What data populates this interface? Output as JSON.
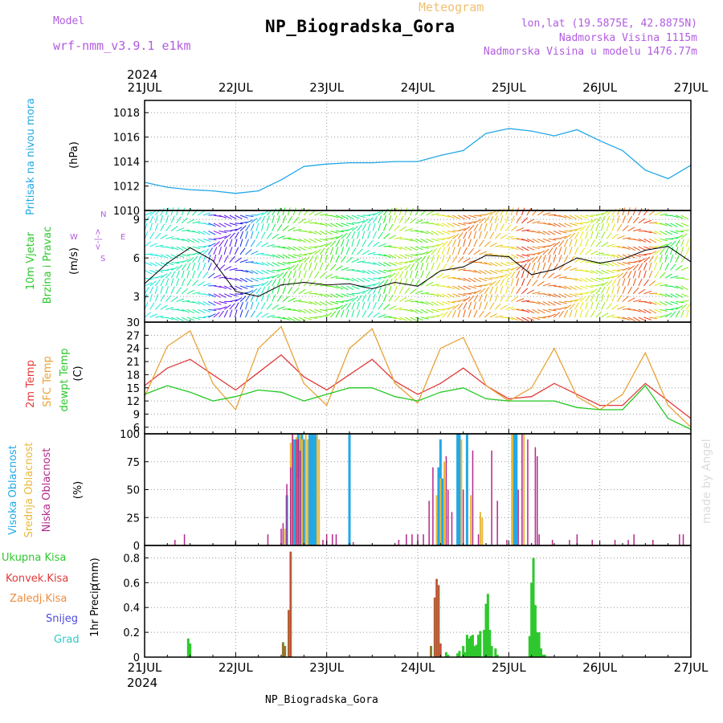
{
  "header": {
    "model_label": "Model",
    "model_name": "wrf-nmm_v3.9.1 e1km",
    "station_title": "NP_Biogradska_Gora",
    "meteogram_label": "Meteogram",
    "lonlat": "lon,lat (19.5875E, 42.8875N)",
    "elevation": "Nadmorska Visina 1115m",
    "model_elevation": "Nadmorska Visina u modelu 1476.77m",
    "year": "2024",
    "footer_station": "NP_Biogradska_Gora",
    "credit": "made by Angel"
  },
  "time_axis": {
    "labels": [
      "21JUL",
      "22JUL",
      "23JUL",
      "24JUL",
      "25JUL",
      "26JUL",
      "27JUL"
    ],
    "year": "2024"
  },
  "colors": {
    "pressure": "#22a8e6",
    "temp2m": "#e23a3a",
    "sfc_temp": "#e8a33a",
    "dewpoint": "#22c822",
    "high_cloud": "#22a8e6",
    "mid_cloud": "#e8b83a",
    "low_cloud": "#b4288c",
    "precip_total": "#2ec82e",
    "precip_conv": "#e23a3a",
    "precip_frozen": "#f08c3c",
    "snow": "#4b4bdc",
    "graupel": "#32c8c8"
  },
  "chart_data": [
    {
      "type": "line",
      "panel": "pressure",
      "ylabel": "Pritisak na nivou mora",
      "yunit": "(hPa)",
      "ylim": [
        1010,
        1019
      ],
      "yticks": [
        1010,
        1012,
        1014,
        1016,
        1018
      ],
      "x_hours": [
        0,
        6,
        12,
        18,
        24,
        30,
        36,
        42,
        48,
        54,
        60,
        66,
        72,
        78,
        84,
        90,
        96,
        102,
        108,
        114,
        120,
        126,
        132,
        138,
        144
      ],
      "series": [
        {
          "values": [
            1012.3,
            1011.9,
            1011.7,
            1011.6,
            1011.4,
            1011.6,
            1012.5,
            1013.6,
            1013.8,
            1013.9,
            1013.9,
            1014.0,
            1014.0,
            1014.5,
            1014.9,
            1016.3,
            1016.7,
            1016.5,
            1016.1,
            1016.6,
            1015.7,
            1014.9,
            1013.3,
            1012.6,
            1013.7
          ]
        }
      ]
    },
    {
      "type": "line",
      "panel": "wind",
      "ylabel": [
        "10m Vjetar",
        "Brzina i Pravac"
      ],
      "yunit": "(m/s)",
      "ylim": [
        1,
        9.7
      ],
      "yticks": [
        3,
        6,
        9
      ],
      "compass": [
        "W",
        "<--|-->",
        "E",
        "S",
        "<-|->",
        "N"
      ],
      "x_hours": [
        0,
        6,
        12,
        18,
        24,
        30,
        36,
        42,
        48,
        54,
        60,
        66,
        72,
        78,
        84,
        90,
        96,
        102,
        108,
        114,
        120,
        126,
        132,
        138,
        144
      ],
      "series": [
        {
          "values": [
            4.0,
            5.6,
            6.8,
            5.8,
            3.4,
            3.0,
            3.9,
            4.1,
            3.9,
            4.0,
            3.6,
            4.1,
            3.8,
            5.0,
            5.3,
            6.2,
            6.1,
            4.7,
            5.1,
            6.0,
            5.6,
            5.9,
            6.6,
            6.9,
            5.7
          ]
        }
      ]
    },
    {
      "type": "line",
      "panel": "temperature",
      "ylabel": [
        "2m Temp",
        "SFC Temp",
        "dewpt Temp"
      ],
      "yunit": "(C)",
      "ylim": [
        4.5,
        30
      ],
      "yticks": [
        6,
        9,
        12,
        15,
        18,
        21,
        24,
        27,
        30
      ],
      "x_hours": [
        0,
        6,
        12,
        18,
        24,
        30,
        36,
        42,
        48,
        54,
        60,
        66,
        72,
        78,
        84,
        90,
        96,
        102,
        108,
        114,
        120,
        126,
        132,
        138,
        144
      ],
      "series": [
        {
          "name": "2m Temp",
          "values": [
            15.5,
            19.5,
            21.5,
            18.0,
            14.5,
            18.5,
            22.5,
            17.5,
            14.5,
            18.0,
            21.5,
            16.5,
            13.5,
            16.0,
            19.5,
            15.5,
            12.5,
            13.0,
            16.0,
            13.5,
            11.0,
            11.0,
            16.0,
            12.0,
            8.0
          ]
        },
        {
          "name": "SFC Temp",
          "values": [
            13.0,
            24.5,
            28.0,
            16.0,
            10.0,
            24.0,
            29.0,
            16.0,
            11.0,
            24.0,
            28.5,
            16.0,
            11.5,
            24.0,
            26.5,
            15.5,
            12.0,
            15.0,
            24.0,
            13.0,
            10.0,
            13.5,
            23.0,
            11.0,
            6.0
          ]
        },
        {
          "name": "dewpt Temp",
          "values": [
            13.5,
            15.5,
            14.0,
            12.0,
            13.0,
            14.5,
            14.0,
            12.0,
            13.5,
            15.0,
            15.0,
            13.0,
            12.0,
            14.0,
            15.0,
            12.5,
            12.0,
            12.0,
            12.0,
            10.5,
            10.0,
            10.0,
            15.5,
            8.0,
            5.5
          ]
        }
      ]
    },
    {
      "type": "bar",
      "panel": "cloud",
      "ylabel": [
        "Visoka Oblacnost",
        "Srednja Oblacnost",
        "Niska Oblacnost"
      ],
      "yunit": "(%)",
      "ylim": [
        0,
        100
      ],
      "yticks": [
        0,
        25,
        50,
        75,
        100
      ],
      "series": [
        {
          "name": "Visoka Oblacnost",
          "points": [
            [
              37.5,
              45
            ],
            [
              39.5,
              95
            ],
            [
              40.5,
              100
            ],
            [
              41.5,
              100
            ],
            [
              42,
              95
            ],
            [
              43.5,
              100
            ],
            [
              44,
              100
            ],
            [
              44.5,
              100
            ],
            [
              45,
              100
            ],
            [
              54,
              100
            ],
            [
              77.5,
              70
            ],
            [
              78,
              95
            ],
            [
              78.5,
              60
            ],
            [
              82.5,
              100
            ],
            [
              83,
              100
            ],
            [
              85,
              100
            ],
            [
              97,
              100
            ],
            [
              97.5,
              100
            ],
            [
              98,
              100
            ]
          ]
        },
        {
          "name": "Srednja Oblacnost",
          "points": [
            [
              37,
              15
            ],
            [
              38.5,
              92
            ],
            [
              39,
              100
            ],
            [
              40,
              97
            ],
            [
              40.5,
              60
            ],
            [
              41,
              100
            ],
            [
              41.5,
              95
            ],
            [
              42.5,
              100
            ],
            [
              43,
              95
            ],
            [
              45.5,
              100
            ],
            [
              46,
              95
            ],
            [
              77,
              45
            ],
            [
              78,
              60
            ],
            [
              79,
              75
            ],
            [
              83.5,
              95
            ],
            [
              86,
              45
            ],
            [
              88.5,
              30
            ],
            [
              89,
              25
            ],
            [
              97,
              100
            ],
            [
              100,
              100
            ]
          ]
        },
        {
          "name": "Niska Oblacnost",
          "points": [
            [
              8,
              5
            ],
            [
              10.5,
              10
            ],
            [
              24,
              3
            ],
            [
              32.5,
              10
            ],
            [
              36,
              15
            ],
            [
              36.5,
              20
            ],
            [
              37.5,
              55
            ],
            [
              38.5,
              70
            ],
            [
              39,
              100
            ],
            [
              40,
              95
            ],
            [
              40.5,
              95
            ],
            [
              41,
              85
            ],
            [
              47,
              5
            ],
            [
              48,
              10
            ],
            [
              49.5,
              10
            ],
            [
              50.5,
              10
            ],
            [
              55,
              3
            ],
            [
              67,
              5
            ],
            [
              69,
              10
            ],
            [
              70.5,
              10
            ],
            [
              72,
              10
            ],
            [
              73.5,
              10
            ],
            [
              75,
              40
            ],
            [
              76,
              70
            ],
            [
              79.5,
              80
            ],
            [
              80,
              50
            ],
            [
              81,
              30
            ],
            [
              84,
              50
            ],
            [
              86.5,
              85
            ],
            [
              88,
              10
            ],
            [
              91.5,
              85
            ],
            [
              93,
              40
            ],
            [
              95.5,
              5
            ],
            [
              98.5,
              50
            ],
            [
              99.5,
              100
            ],
            [
              101,
              95
            ],
            [
              103,
              88
            ],
            [
              103.5,
              80
            ],
            [
              104,
              10
            ],
            [
              107.5,
              5
            ],
            [
              112,
              5
            ],
            [
              114,
              10
            ],
            [
              118,
              5
            ],
            [
              124,
              5
            ],
            [
              127.5,
              5
            ],
            [
              129,
              10
            ],
            [
              134,
              5
            ],
            [
              141,
              10
            ],
            [
              142,
              10
            ]
          ]
        }
      ]
    },
    {
      "type": "bar",
      "panel": "precipitation",
      "ylabel": "1hr Precip",
      "yunit": "(mm)",
      "ylim": [
        0,
        0.9
      ],
      "yticks": [
        0,
        0.2,
        0.4,
        0.6,
        0.8
      ],
      "legend": [
        "Ukupna Kisa",
        "Konvek.Kisa",
        "Zaledj.Kisa",
        "Snijeg",
        "Grad"
      ],
      "series": [
        {
          "name": "Ukupna Kisa",
          "points": [
            [
              11.5,
              0.15
            ],
            [
              12,
              0.11
            ],
            [
              36.5,
              0.12
            ],
            [
              37,
              0.09
            ],
            [
              38,
              0.38
            ],
            [
              38.5,
              0.85
            ],
            [
              75.5,
              0.09
            ],
            [
              76.5,
              0.48
            ],
            [
              77,
              0.63
            ],
            [
              77.5,
              0.58
            ],
            [
              78,
              0.11
            ],
            [
              79.5,
              0.04
            ],
            [
              80,
              0.02
            ],
            [
              82.5,
              0.03
            ],
            [
              83,
              0.05
            ],
            [
              84,
              0.09
            ],
            [
              84.5,
              0.04
            ],
            [
              85,
              0.18
            ],
            [
              85.5,
              0.15
            ],
            [
              86,
              0.17
            ],
            [
              86.5,
              0.18
            ],
            [
              87,
              0.09
            ],
            [
              87.5,
              0.1
            ],
            [
              88,
              0.18
            ],
            [
              88.5,
              0.21
            ],
            [
              89.5,
              0.22
            ],
            [
              90,
              0.43
            ],
            [
              90.5,
              0.51
            ],
            [
              91,
              0.22
            ],
            [
              91.5,
              0.09
            ],
            [
              92.5,
              0.07
            ],
            [
              93,
              0.02
            ],
            [
              101.5,
              0.17
            ],
            [
              102,
              0.6
            ],
            [
              102.5,
              0.8
            ],
            [
              103,
              0.42
            ],
            [
              103.5,
              0.2
            ],
            [
              104,
              0.2
            ],
            [
              104.5,
              0.07
            ],
            [
              105,
              0.02
            ],
            [
              105.5,
              0.02
            ]
          ]
        },
        {
          "name": "Konvek.Kisa",
          "points": [
            [
              36.5,
              0.12
            ],
            [
              37,
              0.09
            ],
            [
              38,
              0.38
            ],
            [
              38.5,
              0.85
            ],
            [
              75.5,
              0.09
            ],
            [
              76.5,
              0.48
            ],
            [
              77,
              0.63
            ],
            [
              77.5,
              0.58
            ],
            [
              78,
              0.11
            ]
          ]
        }
      ]
    }
  ]
}
